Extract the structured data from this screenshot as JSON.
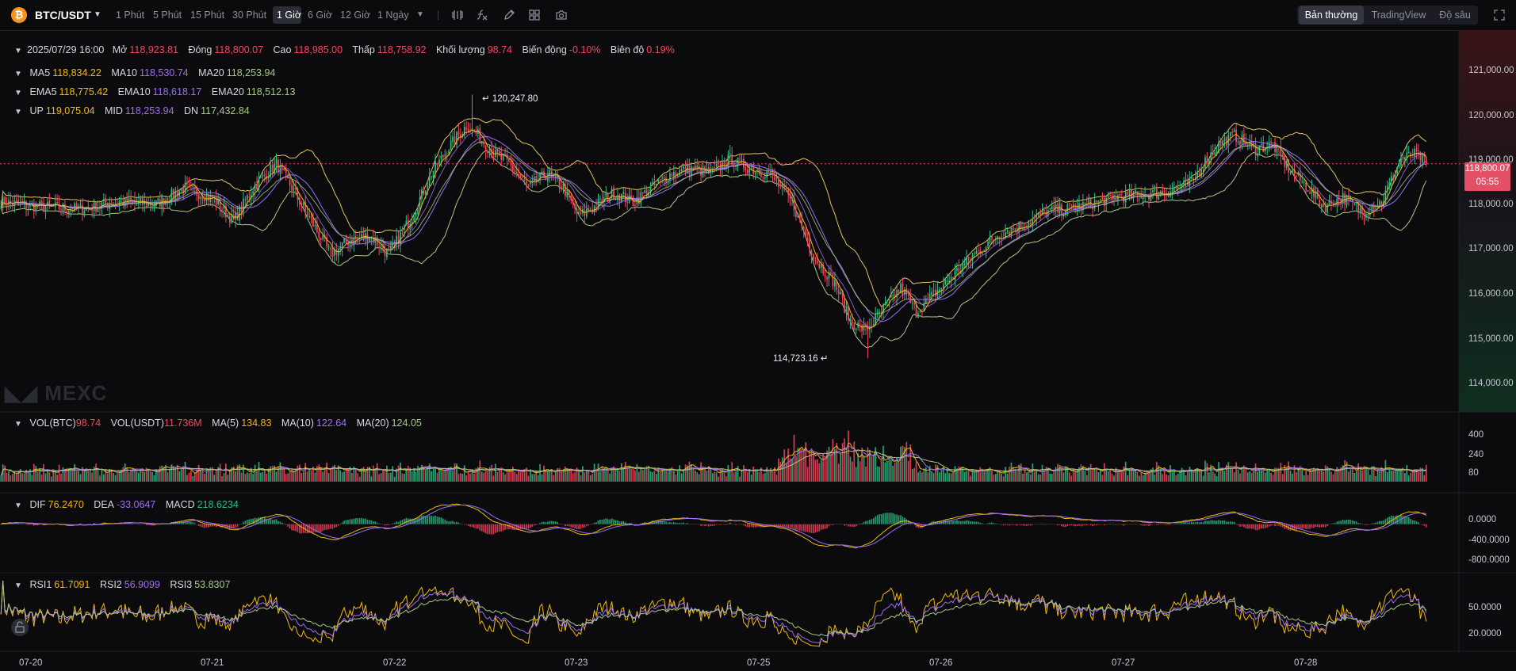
{
  "header": {
    "coin_icon": "bitcoin-icon",
    "symbol": "BTC/USDT",
    "intervals": [
      "1 Phút",
      "5 Phút",
      "15 Phút",
      "30 Phút",
      "1 Giờ",
      "6 Giờ",
      "12 Giờ",
      "1 Ngày"
    ],
    "active_interval": "1 Giờ",
    "tools": [
      "candle-settings-icon",
      "indicator-fx-icon",
      "pencil-icon",
      "grid-layout-icon",
      "camera-icon"
    ],
    "view_tabs": [
      "Bản thường",
      "TradingView",
      "Độ sâu"
    ],
    "active_view": "Bản thường"
  },
  "ohlc": {
    "date": "2025/07/29 16:00",
    "open_label": "Mở",
    "open": "118,923.81",
    "close_label": "Đóng",
    "close": "118,800.07",
    "high_label": "Cao",
    "high": "118,985.00",
    "low_label": "Thấp",
    "low": "118,758.92",
    "volume_label": "Khối lượng",
    "volume": "98.74",
    "change_label": "Biến động",
    "change": "-0.10%",
    "amplitude_label": "Biên độ",
    "amplitude": "0.19%"
  },
  "ma": {
    "ma5_label": "MA5",
    "ma5": "118,834.22",
    "ma10_label": "MA10",
    "ma10": "118,530.74",
    "ma20_label": "MA20",
    "ma20": "118,253.94"
  },
  "ema": {
    "ema5_label": "EMA5",
    "ema5": "118,775.42",
    "ema10_label": "EMA10",
    "ema10": "118,618.17",
    "ema20_label": "EMA20",
    "ema20": "118,512.13"
  },
  "boll": {
    "up_label": "UP",
    "up": "119,075.04",
    "mid_label": "MID",
    "mid": "118,253.94",
    "dn_label": "DN",
    "dn": "117,432.84"
  },
  "vol": {
    "btc_label": "VOL(BTC)",
    "btc": "98.74",
    "usdt_label": "VOL(USDT)",
    "usdt": "11.736M",
    "ma5_label": "MA(5)",
    "ma5": "134.83",
    "ma10_label": "MA(10)",
    "ma10": "122.64",
    "ma20_label": "MA(20)",
    "ma20": "124.05"
  },
  "macd": {
    "dif_label": "DIF",
    "dif": "76.2470",
    "dea_label": "DEA",
    "dea": "-33.0647",
    "macd_label": "MACD",
    "macd": "218.6234"
  },
  "rsi": {
    "rsi1_label": "RSI1",
    "rsi1": "61.7091",
    "rsi2_label": "RSI2",
    "rsi2": "56.9099",
    "rsi3_label": "RSI3",
    "rsi3": "53.8307"
  },
  "price_tag": {
    "price": "118,800.07",
    "countdown": "05:55"
  },
  "watermark": "MEXC",
  "colors": {
    "up": "#2ebd85",
    "down": "#f6465d",
    "ma5": "#f0b90b",
    "ma10": "#9b6ef3",
    "ma20": "#a8c97f",
    "boll": "#e0c55a",
    "bg": "#0b0b0e"
  },
  "chart_data": [
    {
      "type": "candlestick",
      "title": "BTC/USDT 1 Giờ",
      "x_ticks": [
        "07-20",
        "07-21",
        "07-22",
        "07-23",
        "07-25",
        "07-26",
        "07-27",
        "07-28"
      ],
      "y_ticks": [
        "121,000.00",
        "120,000.00",
        "119,000.00",
        "118,000.00",
        "117,000.00",
        "116,000.00",
        "115,000.00",
        "114,000.00"
      ],
      "ylim": [
        113600,
        121600
      ],
      "close_path_keypoints": [
        [
          0,
          118000
        ],
        [
          20,
          117900
        ],
        [
          40,
          117850
        ],
        [
          60,
          118000
        ],
        [
          80,
          117950
        ],
        [
          95,
          118300
        ],
        [
          110,
          118050
        ],
        [
          120,
          117600
        ],
        [
          130,
          118300
        ],
        [
          142,
          118800
        ],
        [
          150,
          118300
        ],
        [
          160,
          117600
        ],
        [
          170,
          116900
        ],
        [
          180,
          117200
        ],
        [
          190,
          117300
        ],
        [
          200,
          116900
        ],
        [
          212,
          117700
        ],
        [
          222,
          118600
        ],
        [
          232,
          119200
        ],
        [
          240,
          119600
        ],
        [
          246,
          119400
        ],
        [
          254,
          119000
        ],
        [
          262,
          118800
        ],
        [
          272,
          118300
        ],
        [
          282,
          118600
        ],
        [
          290,
          118300
        ],
        [
          298,
          117700
        ],
        [
          306,
          117900
        ],
        [
          316,
          118200
        ],
        [
          326,
          118000
        ],
        [
          336,
          118300
        ],
        [
          346,
          118600
        ],
        [
          356,
          118700
        ],
        [
          366,
          118600
        ],
        [
          376,
          118900
        ],
        [
          386,
          118700
        ],
        [
          396,
          118600
        ],
        [
          408,
          118000
        ],
        [
          420,
          116800
        ],
        [
          430,
          116300
        ],
        [
          438,
          115500
        ],
        [
          446,
          115300
        ],
        [
          456,
          115800
        ],
        [
          464,
          116200
        ],
        [
          472,
          115700
        ],
        [
          482,
          116100
        ],
        [
          492,
          116500
        ],
        [
          502,
          116900
        ],
        [
          514,
          117300
        ],
        [
          526,
          117500
        ],
        [
          540,
          117800
        ],
        [
          556,
          117900
        ],
        [
          576,
          118100
        ],
        [
          600,
          118200
        ],
        [
          614,
          118400
        ],
        [
          620,
          118800
        ],
        [
          628,
          119200
        ],
        [
          636,
          119400
        ],
        [
          646,
          119100
        ],
        [
          656,
          119200
        ],
        [
          664,
          118700
        ],
        [
          674,
          118300
        ],
        [
          682,
          117900
        ],
        [
          692,
          118100
        ],
        [
          702,
          117800
        ],
        [
          712,
          118000
        ],
        [
          722,
          118900
        ],
        [
          730,
          119000
        ],
        [
          735,
          118800
        ]
      ],
      "last_close": 118800.07,
      "annotations": [
        {
          "label": "120,247.80",
          "type": "high",
          "value": 120247.8
        },
        {
          "label": "114,723.16",
          "type": "low",
          "value": 114723.16
        }
      ],
      "indicators": [
        "MA5",
        "MA10",
        "MA20",
        "EMA5",
        "EMA10",
        "EMA20",
        "BOLL UP",
        "BOLL MID",
        "BOLL DN"
      ]
    },
    {
      "type": "bar",
      "title": "VOL",
      "y_ticks": [
        "400",
        "240",
        "80"
      ],
      "ylim": [
        0,
        470
      ]
    },
    {
      "type": "bar",
      "title": "MACD",
      "y_ticks": [
        "0.0000",
        "-400.0000",
        "-800.0000"
      ],
      "ylim": [
        -950,
        500
      ]
    },
    {
      "type": "line",
      "title": "RSI",
      "y_ticks": [
        "50.0000",
        "20.0000"
      ],
      "ylim": [
        0,
        100
      ]
    }
  ]
}
